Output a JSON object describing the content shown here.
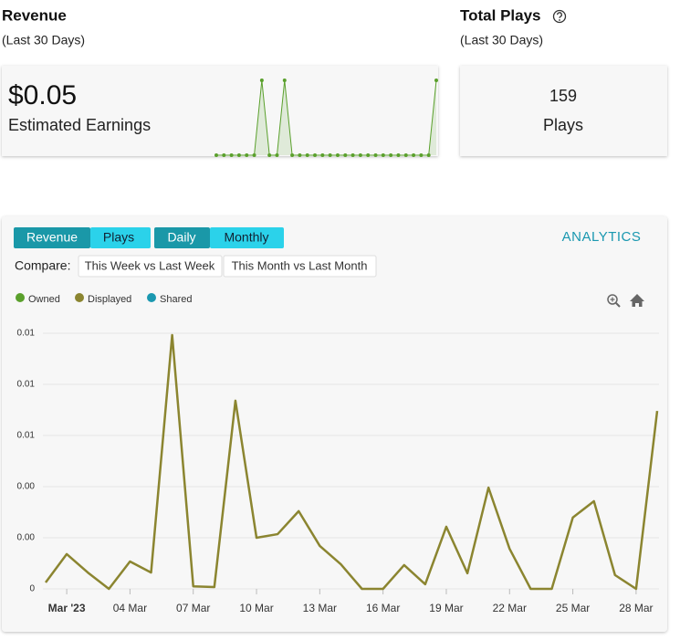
{
  "revenue_card": {
    "title": "Revenue",
    "subtitle": "(Last 30 Days)",
    "amount": "$0.05",
    "label": "Estimated Earnings"
  },
  "plays_card": {
    "title": "Total Plays",
    "subtitle": "(Last 30 Days)",
    "value": 159,
    "label": "Plays"
  },
  "controls": {
    "metric_tabs": [
      "Revenue",
      "Plays"
    ],
    "period_tabs": [
      "Daily",
      "Monthly"
    ],
    "link": "ANALYTICS",
    "compare_label": "Compare:",
    "compare_options": [
      "This Week vs Last Week",
      "This Month vs Last Month"
    ]
  },
  "chart_data": [
    {
      "type": "line",
      "color": "#5aa02c",
      "ylim": [
        0,
        0.01
      ],
      "values": [
        0,
        0,
        0,
        0,
        0,
        0,
        0.01,
        0,
        0,
        0.01,
        0,
        0,
        0,
        0,
        0,
        0,
        0,
        0,
        0,
        0,
        0,
        0,
        0,
        0,
        0,
        0,
        0,
        0,
        0,
        0.01
      ]
    },
    {
      "type": "line",
      "x": [
        "2023-02-28",
        "2023-03-01",
        "2023-03-02",
        "2023-03-03",
        "2023-03-04",
        "2023-03-05",
        "2023-03-06",
        "2023-03-07",
        "2023-03-08",
        "2023-03-09",
        "2023-03-10",
        "2023-03-11",
        "2023-03-12",
        "2023-03-13",
        "2023-03-14",
        "2023-03-15",
        "2023-03-16",
        "2023-03-17",
        "2023-03-18",
        "2023-03-19",
        "2023-03-20",
        "2023-03-21",
        "2023-03-22",
        "2023-03-23",
        "2023-03-24",
        "2023-03-25",
        "2023-03-26",
        "2023-03-27",
        "2023-03-28",
        "2023-03-29"
      ],
      "series": [
        {
          "name": "Owned",
          "color": "#5aa02c"
        },
        {
          "name": "Displayed",
          "color": "#8b8530",
          "values": [
            0.00025,
            0.00136,
            0.00064,
            0,
            0.00107,
            0.00064,
            0.00993,
            0.0001,
            7e-05,
            0.00736,
            0.002,
            0.00214,
            0.00304,
            0.00168,
            0.00096,
            0,
            0,
            0.00093,
            0.00018,
            0.00243,
            0.00061,
            0.00396,
            0.00157,
            0,
            0,
            0.00279,
            0.00343,
            0.00054,
            0,
            0.00696
          ]
        },
        {
          "name": "Shared",
          "color": "#1a98b0"
        }
      ],
      "xlim": [
        "2023-02-28",
        "2023-03-29"
      ],
      "xticks": [
        {
          "value": "2023-03-01",
          "label": "Mar '23"
        },
        {
          "value": "2023-03-04",
          "label": "04 Mar"
        },
        {
          "value": "2023-03-07",
          "label": "07 Mar"
        },
        {
          "value": "2023-03-10",
          "label": "10 Mar"
        },
        {
          "value": "2023-03-13",
          "label": "13 Mar"
        },
        {
          "value": "2023-03-16",
          "label": "16 Mar"
        },
        {
          "value": "2023-03-19",
          "label": "19 Mar"
        },
        {
          "value": "2023-03-22",
          "label": "22 Mar"
        },
        {
          "value": "2023-03-25",
          "label": "25 Mar"
        },
        {
          "value": "2023-03-28",
          "label": "28 Mar"
        }
      ],
      "ylim": [
        0,
        0.01
      ],
      "yticks": [
        0,
        {
          "value": 0.002,
          "label": "0.00"
        },
        {
          "value": 0.004,
          "label": "0.00"
        },
        {
          "value": 0.006,
          "label": "0.01"
        },
        {
          "value": 0.008,
          "label": "0.01"
        },
        0.01
      ],
      "grid": true
    }
  ]
}
